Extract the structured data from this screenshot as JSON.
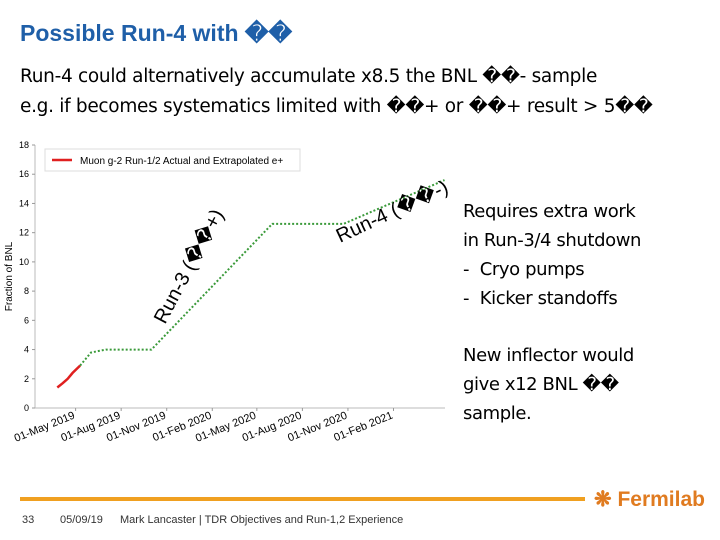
{
  "header": {
    "title": "Possible Run-4 with ��"
  },
  "body": [
    "Run-4 could alternatively accumulate x8.5 the BNL ��- sample",
    "e.g. if becomes systematics limited with ��+ or ��+ result > 5��"
  ],
  "side_notes": {
    "first": [
      "Requires extra work",
      "in Run-3/4 shutdown",
      "-  Cryo pumps",
      "-  Kicker standoffs"
    ],
    "second": [
      "New inflector would",
      "give x12 BNL ��",
      "sample."
    ]
  },
  "chart_data": {
    "type": "line",
    "ylabel": "Fraction of BNL",
    "ylim": [
      0,
      18
    ],
    "yticks": [
      0,
      2,
      4,
      6,
      8,
      10,
      12,
      14,
      16,
      18
    ],
    "xlim": [
      "2019-02-08",
      "2021-05-16"
    ],
    "xticks": [
      {
        "value": "2019-05-01",
        "label": "01-May 2019"
      },
      {
        "value": "2019-08-01",
        "label": "01-Aug 2019"
      },
      {
        "value": "2019-11-01",
        "label": "01-Nov 2019"
      },
      {
        "value": "2020-02-01",
        "label": "01-Feb 2020"
      },
      {
        "value": "2020-05-01",
        "label": "01-May 2020"
      },
      {
        "value": "2020-08-01",
        "label": "01-Aug 2020"
      },
      {
        "value": "2020-11-01",
        "label": "01-Nov 2020"
      },
      {
        "value": "2021-02-01",
        "label": "01-Feb 2021"
      }
    ],
    "series": [
      {
        "name": "Muon g-2 Run-1/2 Actual and Extrapolated e+",
        "color": "#e02020",
        "x": [
          "2019-03-25",
          "2019-04-05",
          "2019-04-15",
          "2019-04-25",
          "2019-05-10"
        ],
        "values": [
          1.4,
          1.7,
          2.0,
          2.4,
          2.9
        ]
      },
      {
        "color": "#3a9a3a",
        "dashed": true,
        "x": [
          "2019-05-10",
          "2019-06-01",
          "2019-07-01",
          "2019-10-01",
          "2020-06-01",
          "2020-10-23",
          "2021-05-15"
        ],
        "values": [
          2.9,
          3.8,
          4.0,
          4.0,
          12.6,
          12.6,
          15.6
        ]
      }
    ],
    "annotations": [
      "Run-3 (��+)",
      "Run-4 (��-)"
    ]
  },
  "footer": {
    "page": "33",
    "date": "05/09/19",
    "text": "Mark Lancaster | TDR Objectives and Run-1,2 Experience",
    "logo": "Fermilab"
  }
}
